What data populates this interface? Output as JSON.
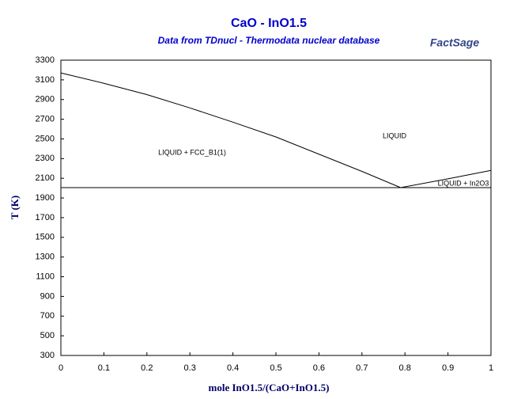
{
  "chart_data": {
    "type": "line",
    "title": "CaO - InO1.5",
    "subtitle": "Data from TDnucl - Thermodata nuclear database",
    "logo": "FactSage",
    "x_label": "mole InO1.5/(CaO+InO1.5)",
    "y_label": "T (K)",
    "xlim": [
      0,
      1
    ],
    "ylim": [
      300,
      3300
    ],
    "xticks": [
      0,
      0.1,
      0.2,
      0.3,
      0.4,
      0.5,
      0.6,
      0.7,
      0.8,
      0.9,
      1
    ],
    "yticks": [
      300,
      500,
      700,
      900,
      1100,
      1300,
      1500,
      1700,
      1900,
      2100,
      2300,
      2500,
      2700,
      2900,
      3100,
      3300
    ],
    "series": [
      {
        "color": "#000000",
        "x": [
          0,
          0.1,
          0.2,
          0.3,
          0.4,
          0.5,
          0.6,
          0.7,
          0.79
        ],
        "values": [
          3170,
          3065,
          2950,
          2815,
          2670,
          2520,
          2345,
          2170,
          2005
        ]
      },
      {
        "color": "#000000",
        "x": [
          0.79,
          0.9,
          1
        ],
        "values": [
          2005,
          2095,
          2180
        ]
      },
      {
        "color": "#000000",
        "x": [
          0,
          1
        ],
        "values": [
          2005,
          2005
        ]
      }
    ],
    "annotations": [
      "LIQUID + FCC_B1(1)",
      "LIQUID",
      "LIQUID + In2O3"
    ]
  }
}
